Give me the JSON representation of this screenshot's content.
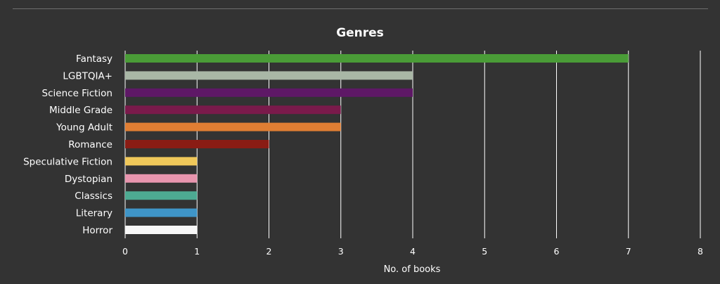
{
  "chart_data": {
    "type": "bar",
    "orientation": "horizontal",
    "title": "Genres",
    "xlabel": "No. of books",
    "ylabel": "",
    "xlim": [
      0,
      8
    ],
    "xticks": [
      0,
      1,
      2,
      3,
      4,
      5,
      6,
      7,
      8
    ],
    "grid": true,
    "legend": "none",
    "categories": [
      "Fantasy",
      "LGBTQIA+",
      "Science Fiction",
      "Middle Grade",
      "Young Adult",
      "Romance",
      "Speculative Fiction",
      "Dystopian",
      "Classics",
      "Literary",
      "Horror"
    ],
    "values": [
      7,
      4,
      4,
      3,
      3,
      2,
      1,
      1,
      1,
      1,
      1
    ],
    "colors": [
      "#4a9c37",
      "#a9b7a6",
      "#5e1866",
      "#7a1a4b",
      "#e07e33",
      "#8a1c14",
      "#f0c85a",
      "#e895ae",
      "#4daa92",
      "#3f95c8",
      "#f7f7f7"
    ]
  },
  "style": {
    "background": "#333333",
    "text_color": "#ffffff",
    "grid_color": "#ffffff"
  }
}
